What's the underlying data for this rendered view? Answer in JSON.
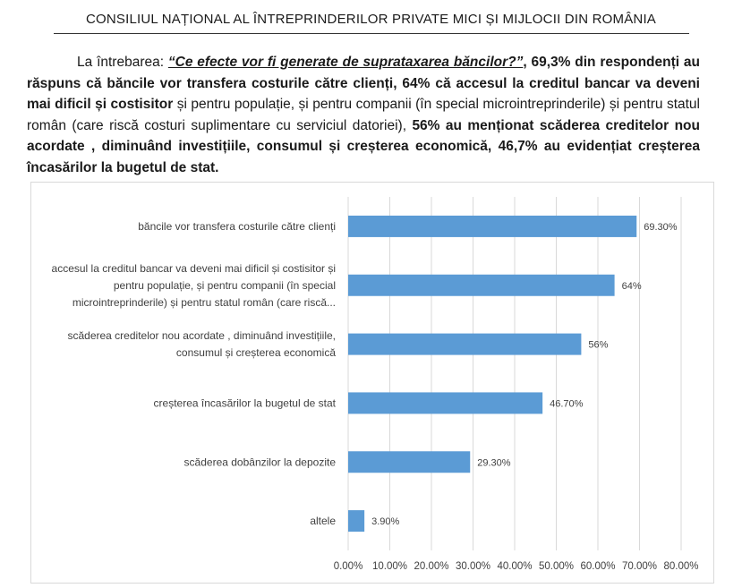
{
  "header": {
    "title": "CONSILIUL NAȚIONAL AL ÎNTREPRINDERILOR PRIVATE MICI ȘI MIJLOCII DIN ROMÂNIA"
  },
  "paragraph": {
    "lead": "La întrebarea: ",
    "question": "“Ce efecte vor fi generate de suprataxarea băncilor?”",
    "comma": ",",
    "s1_bold": " 69,3% din respondenți au răspuns că băncile vor transfera costurile către clienți, 64% că accesul la creditul bancar va deveni mai dificil și costisitor",
    "s1_plain": " și pentru populație, și pentru companii (în special microintreprinderile) și pentru statul român (care riscă costuri suplimentare cu serviciul datoriei), ",
    "s2_bold": "56% au menționat scăderea creditelor nou acordate , diminuând investițiile, consumul și creșterea economică, 46,7% au evidențiat creșterea încasărilor la bugetul de stat."
  },
  "chart_data": {
    "type": "bar",
    "orientation": "horizontal",
    "categories": [
      [
        "băncile vor transfera costurile către clienți"
      ],
      [
        "accesul la creditul bancar va deveni mai dificil și costisitor și",
        "pentru populație, și pentru companii (în special",
        "microintreprinderile) și pentru statul român (care riscă..."
      ],
      [
        "scăderea creditelor nou acordate , diminuând investițiile,",
        "consumul și creșterea economică"
      ],
      [
        "creșterea încasărilor la bugetul de stat"
      ],
      [
        "scăderea dobânzilor la depozite"
      ],
      [
        "altele"
      ]
    ],
    "values": [
      0.693,
      0.64,
      0.56,
      0.467,
      0.293,
      0.039
    ],
    "data_labels": [
      "69.30%",
      "64%",
      "56%",
      "46.70%",
      "29.30%",
      "3.90%"
    ],
    "xlim": [
      0,
      0.8
    ],
    "x_ticks": [
      "0.00%",
      "10.00%",
      "20.00%",
      "30.00%",
      "40.00%",
      "50.00%",
      "60.00%",
      "70.00%",
      "80.00%"
    ],
    "grid": true,
    "bar_color": "#5b9bd5",
    "grid_color": "#d9d9d9"
  }
}
